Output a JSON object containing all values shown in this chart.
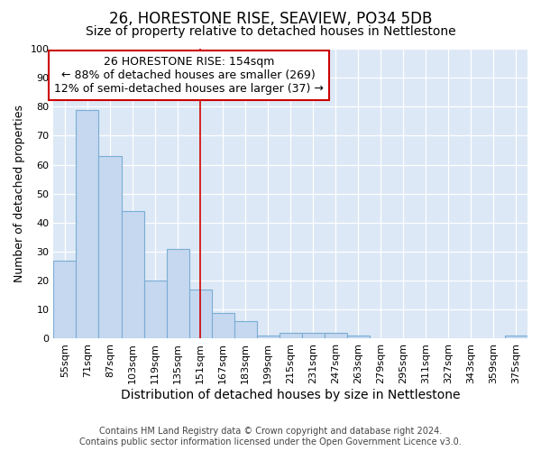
{
  "title1": "26, HORESTONE RISE, SEAVIEW, PO34 5DB",
  "title2": "Size of property relative to detached houses in Nettlestone",
  "xlabel": "Distribution of detached houses by size in Nettlestone",
  "ylabel": "Number of detached properties",
  "categories": [
    "55sqm",
    "71sqm",
    "87sqm",
    "103sqm",
    "119sqm",
    "135sqm",
    "151sqm",
    "167sqm",
    "183sqm",
    "199sqm",
    "215sqm",
    "231sqm",
    "247sqm",
    "263sqm",
    "279sqm",
    "295sqm",
    "311sqm",
    "327sqm",
    "343sqm",
    "359sqm",
    "375sqm"
  ],
  "values": [
    27,
    79,
    63,
    44,
    20,
    31,
    17,
    9,
    6,
    1,
    2,
    2,
    2,
    1,
    0,
    0,
    0,
    0,
    0,
    0,
    1
  ],
  "bar_color": "#c5d8f0",
  "bar_edge_color": "#7aadd4",
  "vline_x": 6,
  "vline_color": "#cc0000",
  "annotation_text": "26 HORESTONE RISE: 154sqm\n← 88% of detached houses are smaller (269)\n12% of semi-detached houses are larger (37) →",
  "annotation_box_color": "#ffffff",
  "annotation_box_edge_color": "#cc0000",
  "ylim": [
    0,
    100
  ],
  "yticks": [
    0,
    10,
    20,
    30,
    40,
    50,
    60,
    70,
    80,
    90,
    100
  ],
  "fig_bg_color": "#ffffff",
  "plot_bg_color": "#dce8f5",
  "grid_color": "#ffffff",
  "footer_line1": "Contains HM Land Registry data © Crown copyright and database right 2024.",
  "footer_line2": "Contains public sector information licensed under the Open Government Licence v3.0.",
  "title1_fontsize": 12,
  "title2_fontsize": 10,
  "xlabel_fontsize": 10,
  "ylabel_fontsize": 9,
  "annotation_fontsize": 9,
  "footer_fontsize": 7,
  "tick_fontsize": 8
}
